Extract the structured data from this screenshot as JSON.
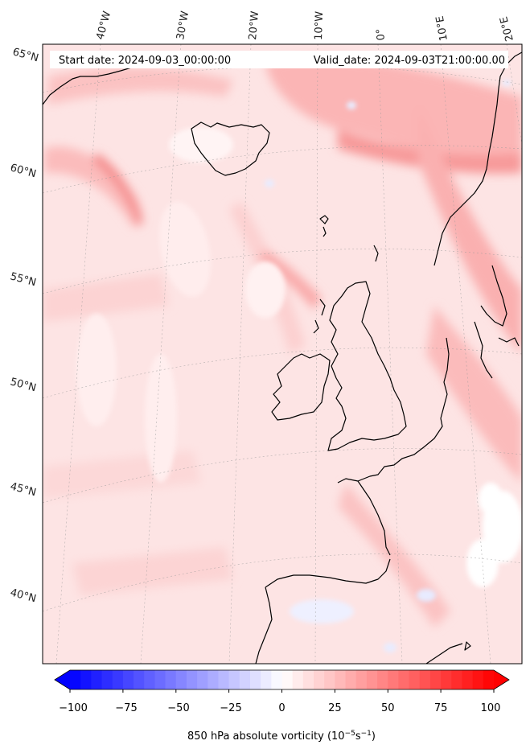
{
  "header": {
    "start_label": "Start date: 2024-09-03_00:00:00",
    "valid_label": "Valid_date: 2024-09-03T21:00:00.00"
  },
  "map": {
    "lon_labels": [
      "40°W",
      "30°W",
      "20°W",
      "10°W",
      "0°",
      "10°E",
      "20°E"
    ],
    "lat_labels": [
      "65°N",
      "60°N",
      "55°N",
      "50°N",
      "45°N",
      "40°N"
    ]
  },
  "colorbar": {
    "ticks": [
      "−100",
      "−75",
      "−50",
      "−25",
      "0",
      "25",
      "50",
      "75",
      "100"
    ],
    "title_main": "850 hPa absolute vorticity (10",
    "title_exp1": "−5",
    "title_mid": "s",
    "title_exp2": "−1",
    "title_end": ")",
    "min": -100,
    "max": 100,
    "levels": 40,
    "color_low": "#0000ff",
    "color_mid": "#ffffff",
    "color_high": "#ff0000"
  }
}
